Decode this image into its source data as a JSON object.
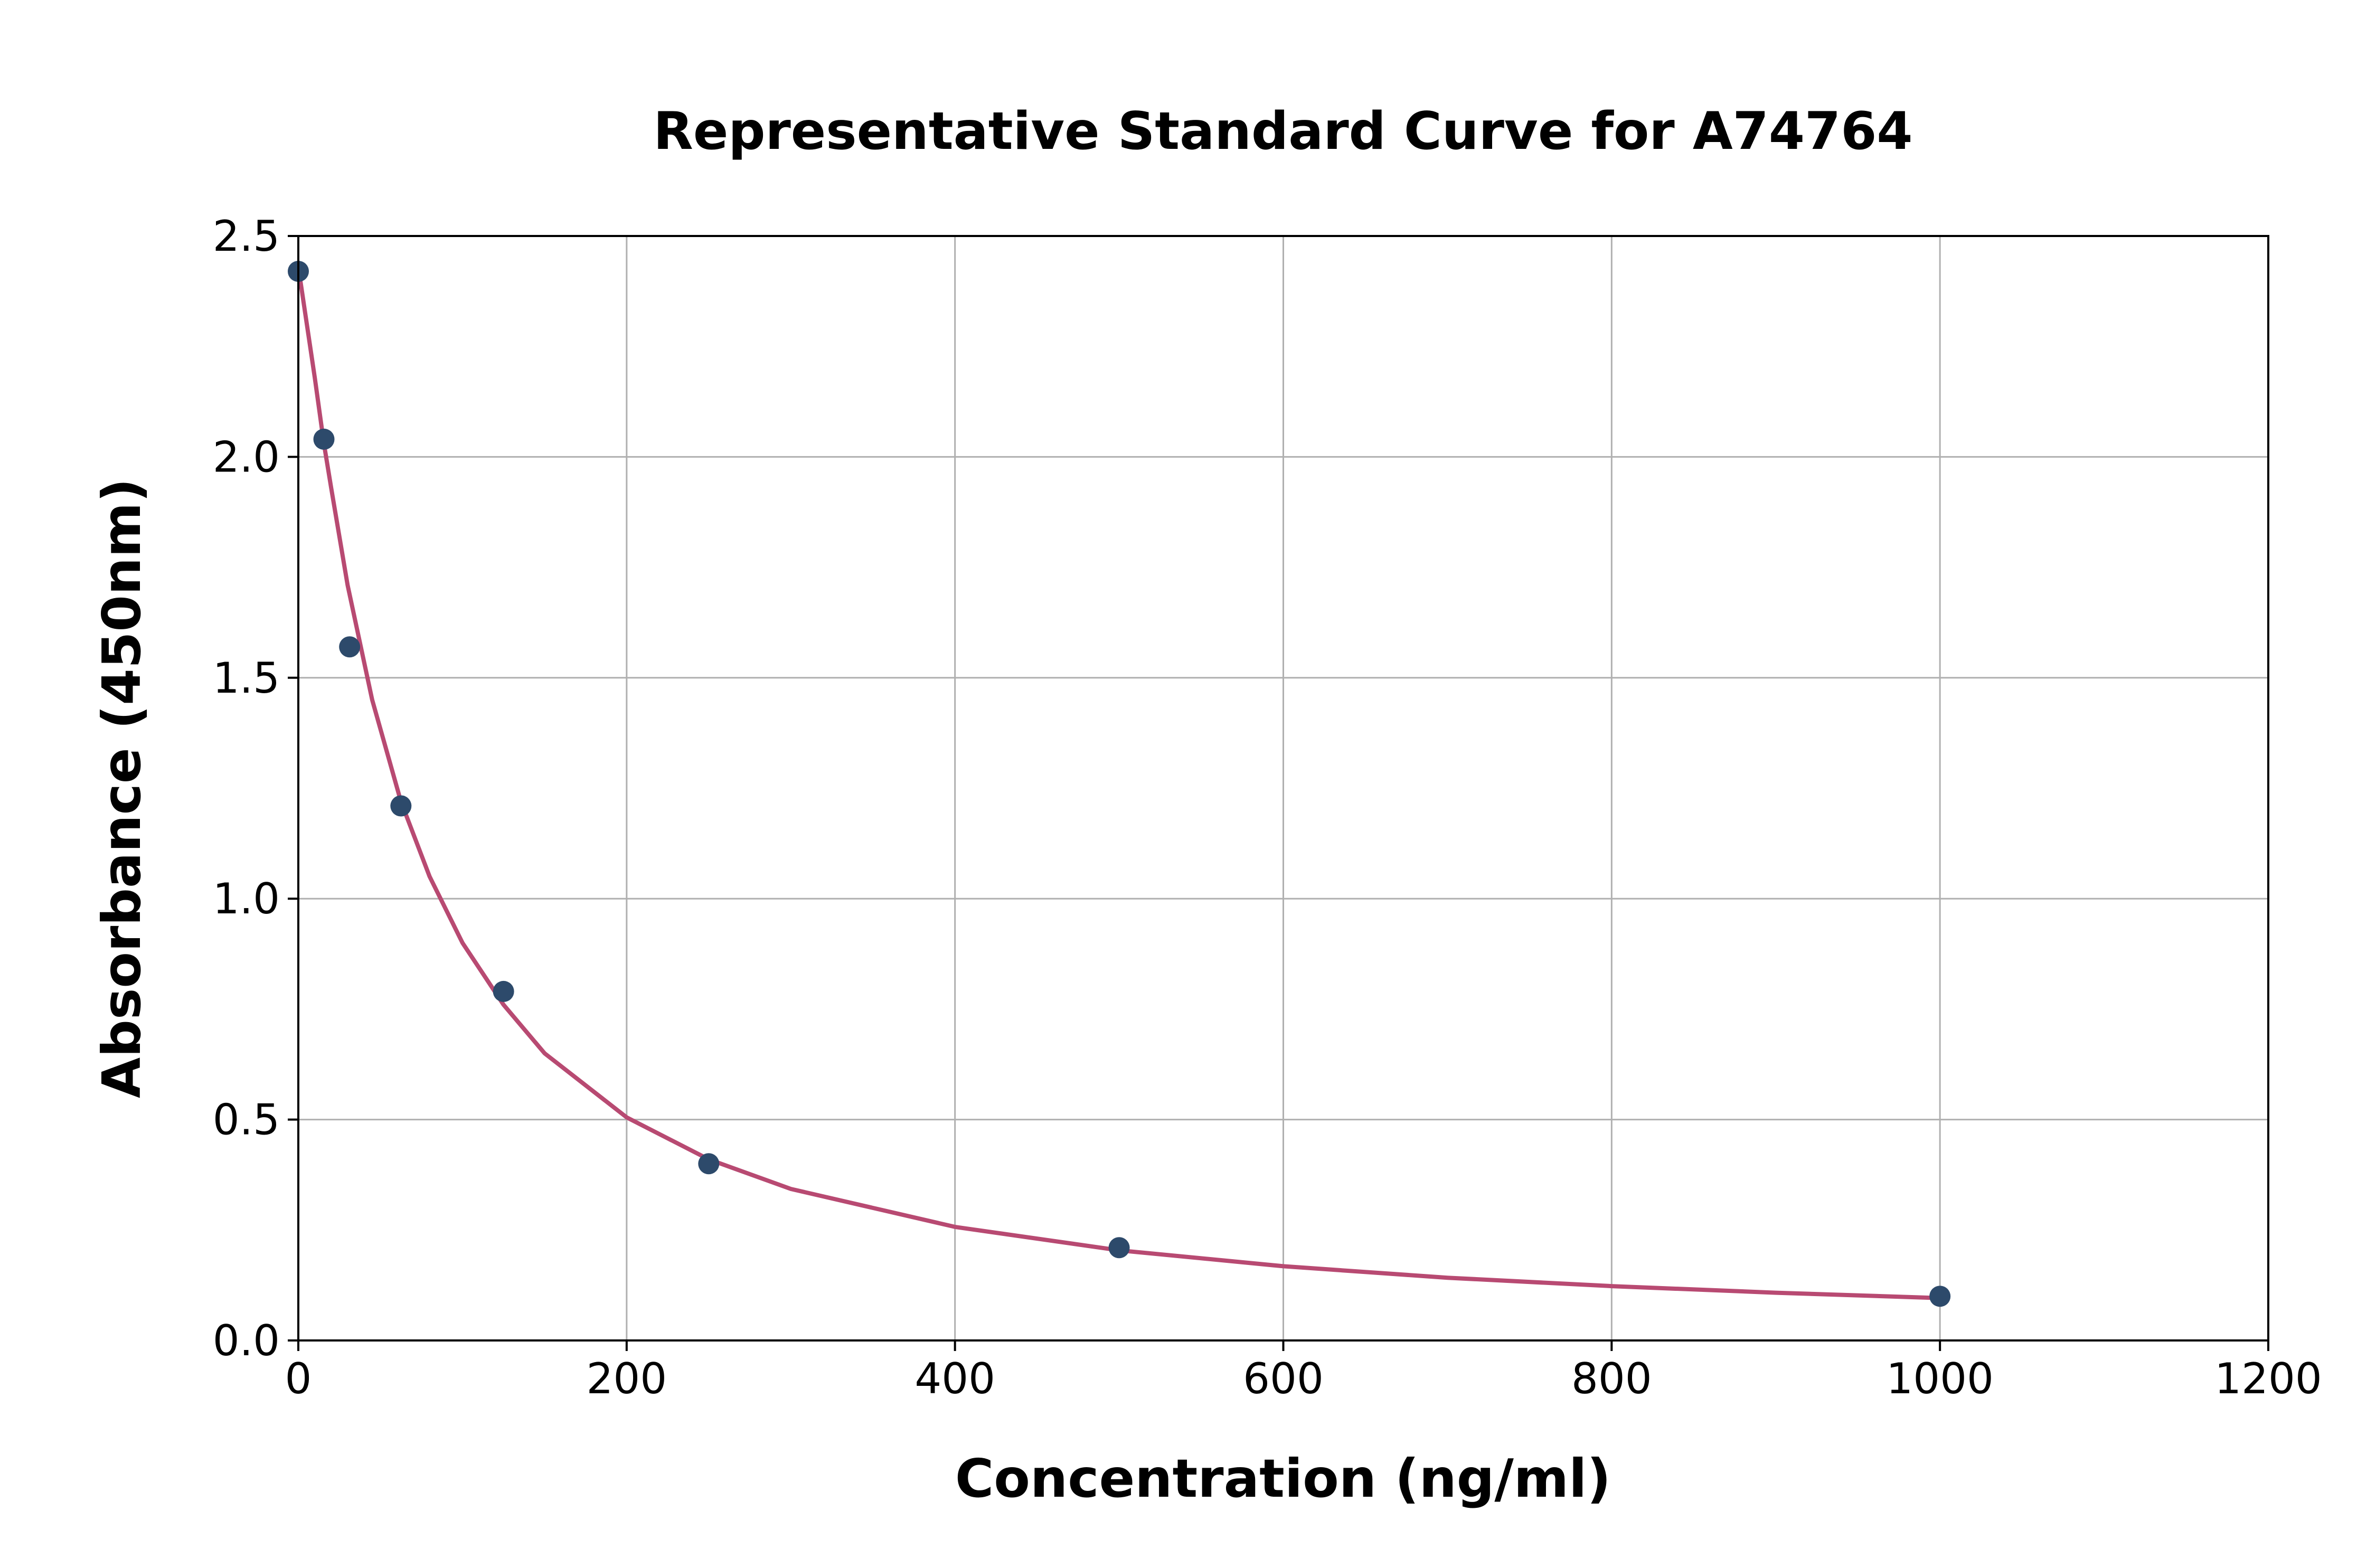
{
  "chart_data": {
    "type": "scatter",
    "title": "Representative Standard Curve for A74764",
    "xlabel": "Concentration (ng/ml)",
    "ylabel": "Absorbance (450nm)",
    "xlim": [
      0,
      1200
    ],
    "ylim": [
      0,
      2.5
    ],
    "xticks": [
      "0",
      "200",
      "400",
      "600",
      "800",
      "1000",
      "1200"
    ],
    "yticks": [
      "0.0",
      "0.5",
      "1.0",
      "1.5",
      "2.0",
      "2.5"
    ],
    "grid": true,
    "points": {
      "x": [
        0,
        15.6,
        31.25,
        62.5,
        125,
        250,
        500,
        1000
      ],
      "y": [
        2.42,
        2.04,
        1.57,
        1.21,
        0.79,
        0.4,
        0.21,
        0.1
      ],
      "color": "#2d4a6b"
    },
    "fit_curve": {
      "x": [
        0,
        10,
        15.6,
        20,
        30,
        45,
        62.5,
        80,
        100,
        125,
        150,
        200,
        250,
        300,
        400,
        500,
        600,
        700,
        800,
        900,
        1000
      ],
      "y": [
        2.43,
        2.18,
        2.03,
        1.93,
        1.71,
        1.45,
        1.22,
        1.05,
        0.9,
        0.76,
        0.65,
        0.505,
        0.41,
        0.343,
        0.257,
        0.204,
        0.168,
        0.142,
        0.123,
        0.108,
        0.096
      ],
      "color": "#b84a72"
    }
  }
}
